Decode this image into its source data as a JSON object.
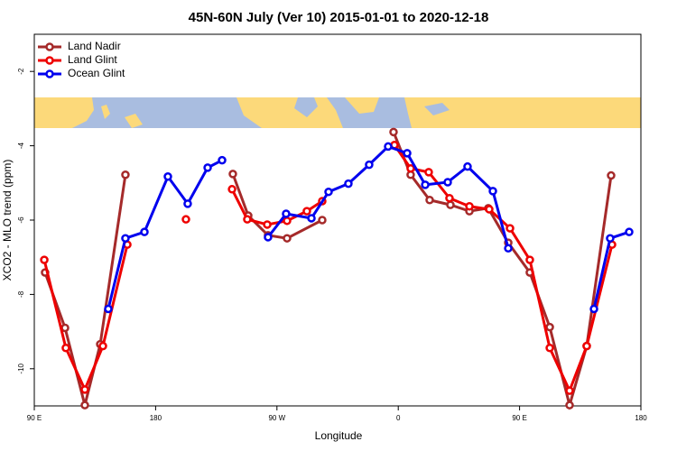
{
  "chart_data": {
    "type": "line",
    "title": "45N-60N July (Ver 10)   2015-01-01 to 2020-12-18",
    "x_label": "Longitude",
    "y_label": "XCO2 - MLO trend (ppm)",
    "xlim": [
      90,
      540
    ],
    "ylim": [
      -11,
      -1
    ],
    "xticks": [
      {
        "value": 90,
        "label": "90 E"
      },
      180,
      {
        "value": 270,
        "label": "90 W"
      },
      {
        "value": 360,
        "label": "0"
      },
      {
        "value": 450,
        "label": "90 E"
      },
      {
        "value": 540,
        "label": "180"
      }
    ],
    "yticks": [
      -10,
      -8,
      -6,
      -4,
      -2
    ],
    "legend": "top-left",
    "series": [
      {
        "name": "Land Nadir",
        "color": "#a52a2a",
        "x": [
          98.0,
          112.8,
          127.5,
          138.9,
          157.6,
          null,
          237.3,
          248.7,
          263.4,
          277.5,
          303.6,
          null,
          356.5,
          369.2,
          383.3,
          398.7,
          412.8,
          426.8,
          441.6,
          457.6,
          472.4,
          487.1,
          499.8,
          517.9
        ],
        "values": [
          -7.41,
          -8.9,
          -10.98,
          -9.34,
          -4.78,
          null,
          -4.76,
          -5.88,
          -6.41,
          -6.49,
          -6.0,
          null,
          -3.63,
          -4.78,
          -5.46,
          -5.59,
          -5.76,
          -5.68,
          -6.61,
          -7.41,
          -8.88,
          -10.98,
          -9.39,
          -4.8
        ]
      },
      {
        "name": "Land Glint",
        "color": "#ee0000",
        "x": [
          97.4,
          113.4,
          127.5,
          140.9,
          159.0,
          null,
          202.5,
          null,
          236.7,
          248.0,
          262.8,
          277.5,
          292.2,
          303.6,
          null,
          357.2,
          369.2,
          382.6,
          398.0,
          412.8,
          427.5,
          442.9,
          457.6,
          472.4,
          487.1,
          499.8,
          518.6
        ],
        "values": [
          -7.07,
          -9.44,
          -10.56,
          -9.39,
          -6.66,
          null,
          -5.98,
          null,
          -5.17,
          -5.98,
          -6.12,
          -6.02,
          -5.76,
          -5.49,
          null,
          -3.98,
          -4.61,
          -4.71,
          -5.41,
          -5.63,
          -5.71,
          -6.22,
          -7.07,
          -9.44,
          -10.59,
          -9.39,
          -6.66
        ]
      },
      {
        "name": "Ocean Glint",
        "color": "#0000ee",
        "x": [
          144.9,
          157.6,
          171.7,
          189.1,
          203.8,
          218.6,
          229.3,
          null,
          263.4,
          276.8,
          295.6,
          308.3,
          323.0,
          338.4,
          352.5,
          366.6,
          380.0,
          396.7,
          411.4,
          430.2,
          441.6,
          null,
          505.2,
          517.2,
          531.3
        ],
        "values": [
          -8.39,
          -6.49,
          -6.32,
          -4.83,
          -5.56,
          -4.59,
          -4.39,
          null,
          -6.46,
          -5.83,
          -5.95,
          -5.24,
          -5.02,
          -4.51,
          -4.02,
          -4.2,
          -5.05,
          -4.98,
          -4.56,
          -5.22,
          -6.76,
          null,
          -8.39,
          -6.49,
          -6.32
        ]
      }
    ]
  }
}
